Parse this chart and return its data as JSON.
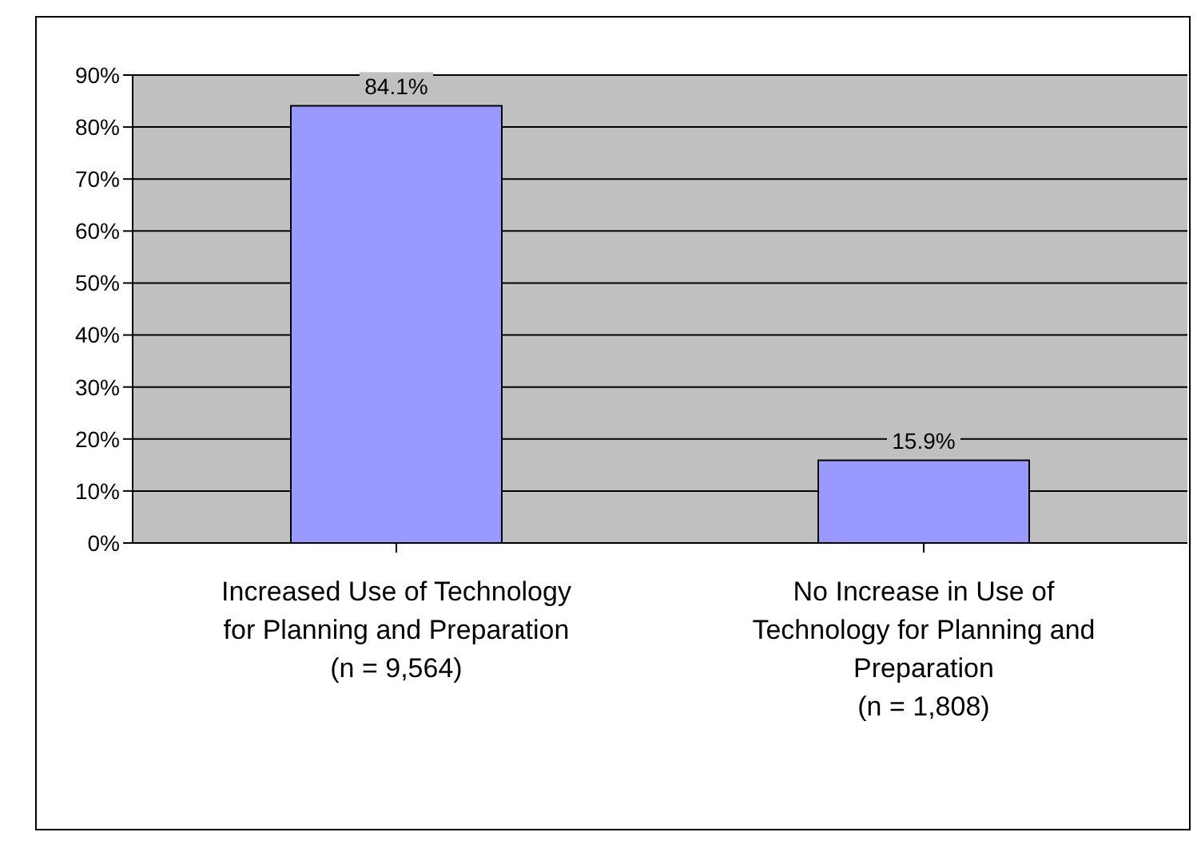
{
  "chart_data": {
    "type": "bar",
    "categories": [
      "Increased Use of Technology\nfor Planning and Preparation\n(n = 9,564)",
      "No Increase in Use of\nTechnology for Planning and\nPreparation\n(n = 1,808)"
    ],
    "values": [
      84.1,
      15.9
    ],
    "color": "#9999ff",
    "value_labels": [
      "84.1%",
      "15.9%"
    ],
    "ylim": [
      0,
      90
    ],
    "yticks": [
      {
        "value": 0,
        "label": "0%"
      },
      {
        "value": 10,
        "label": "10%"
      },
      {
        "value": 20,
        "label": "20%"
      },
      {
        "value": 30,
        "label": "30%"
      },
      {
        "value": 40,
        "label": "40%"
      },
      {
        "value": 50,
        "label": "50%"
      },
      {
        "value": 60,
        "label": "60%"
      },
      {
        "value": 70,
        "label": "70%"
      },
      {
        "value": 80,
        "label": "80%"
      },
      {
        "value": 90,
        "label": "90%"
      }
    ],
    "grid": "y",
    "legend": false
  }
}
